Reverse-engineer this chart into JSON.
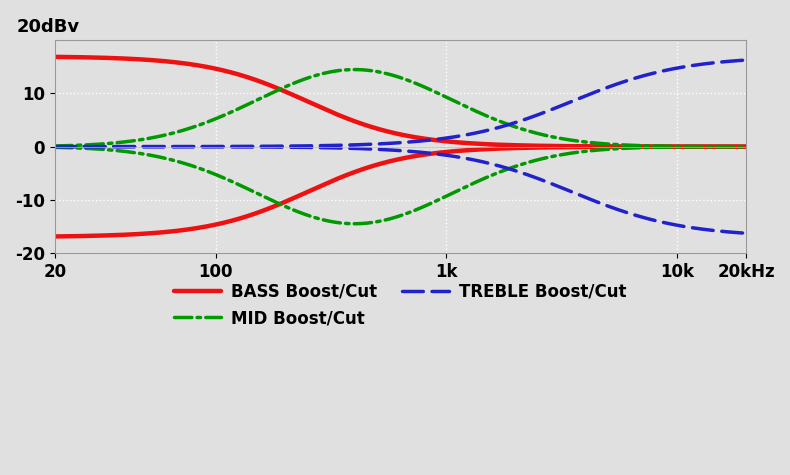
{
  "ylabel": "20dBv",
  "ylim": [
    -20,
    20
  ],
  "yticks": [
    -20,
    -10,
    0,
    10
  ],
  "ytick_labels": [
    "-20",
    "-10",
    "0",
    "10"
  ],
  "xlim_log": [
    20,
    20000
  ],
  "xticks": [
    20,
    100,
    1000,
    10000,
    20000
  ],
  "xtick_labels": [
    "20",
    "100",
    "1k",
    "10k",
    "20kHz"
  ],
  "bg_color": "#e0e0e0",
  "grid_color": "#ffffff",
  "bass_color": "#ee1111",
  "mid_color": "#009900",
  "treble_color": "#2222cc",
  "bass_label": "BASS Boost/Cut",
  "mid_label": "MID Boost/Cut",
  "treble_label": "TREBLE Boost/Cut",
  "bass_lw": 3.2,
  "mid_lw": 2.5,
  "treble_lw": 2.5,
  "bass_fc": 250,
  "bass_slope": 2.0,
  "bass_amplitude": 17.0,
  "mid_fc": 400,
  "mid_Q": 2.8,
  "mid_amplitude": 14.5,
  "treble_fc": 3500,
  "treble_slope": 1.8,
  "treble_amplitude": 17.0
}
